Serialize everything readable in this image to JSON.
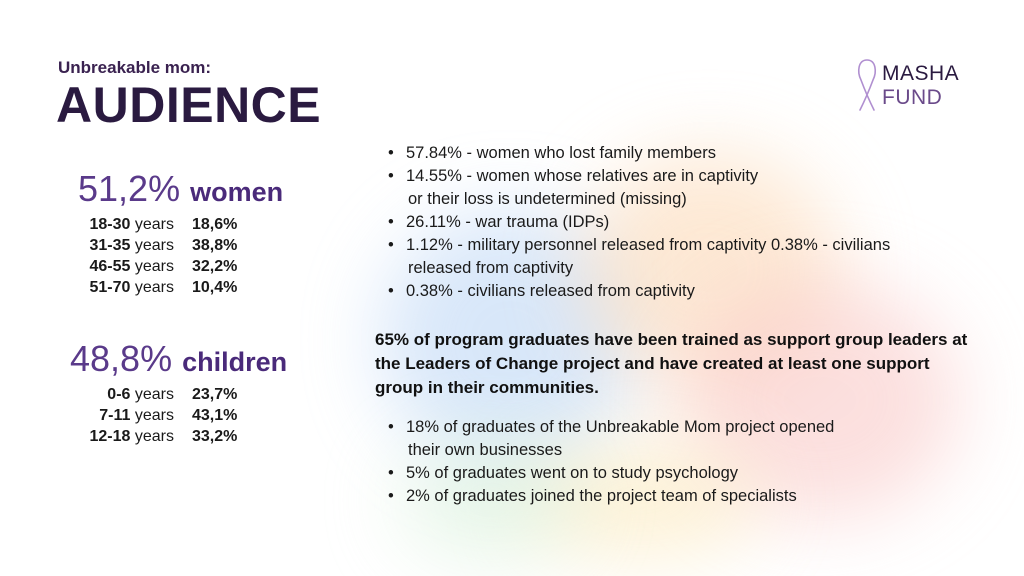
{
  "header": {
    "subtitle": "Unbreakable mom:",
    "title": "AUDIENCE"
  },
  "logo": {
    "line1": "MASHA",
    "line2": "FUND",
    "ribbon_color": "#b08fd0"
  },
  "women": {
    "percent": "51,2%",
    "label": "women",
    "rows": [
      {
        "range": "18-30",
        "unit": " years",
        "pct": "18,6%"
      },
      {
        "range": "31-35",
        "unit": " years",
        "pct": "38,8%"
      },
      {
        "range": "46-55",
        "unit": " years",
        "pct": "32,2%"
      },
      {
        "range": "51-70",
        "unit": " years",
        "pct": "10,4%"
      }
    ]
  },
  "children": {
    "percent": "48,8%",
    "label": "children",
    "rows": [
      {
        "range": "0-6",
        "unit": " years",
        "pct": "23,7%"
      },
      {
        "range": "7-11",
        "unit": " years",
        "pct": "43,1%"
      },
      {
        "range": "12-18",
        "unit": " years",
        "pct": "33,2%"
      }
    ]
  },
  "loss_list": [
    {
      "line1": "57.84% - women who lost family members"
    },
    {
      "line1": "14.55% - women whose relatives are in captivity",
      "line2": "or their loss is undetermined (missing)"
    },
    {
      "line1": "26.11% - war trauma (IDPs)"
    },
    {
      "line1": "1.12% - military personnel released from captivity 0.38% - civilians",
      "line2": "released from captivity"
    },
    {
      "line1": "0.38% - civilians released from captivity"
    }
  ],
  "graduates_paragraph": "65% of program graduates have been trained as support group leaders at the Leaders of Change project and have created at least one support group in their communities.",
  "graduates_list": [
    {
      "line1": "18% of graduates of the Unbreakable Mom project opened",
      "line2": "their own businesses"
    },
    {
      "line1": "5% of graduates went on to study psychology"
    },
    {
      "line1": "2% of graduates joined the project team of specialists"
    }
  ],
  "colors": {
    "purple_dark": "#2a1a40",
    "purple_accent": "#5a3a8a"
  }
}
